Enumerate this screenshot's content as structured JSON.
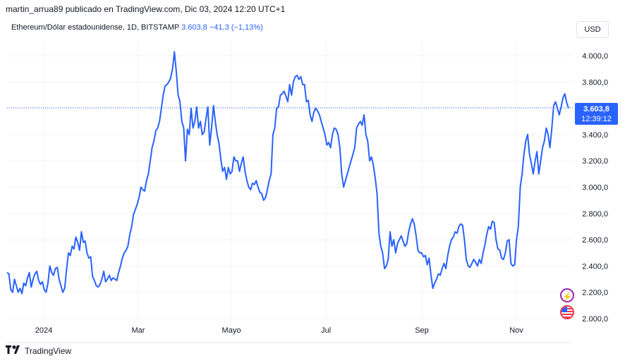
{
  "header": {
    "attribution": "martin_arrua89 publicado en TradingView.com, Dic 03, 2024 12:20 UTC+1"
  },
  "legend": {
    "symbol": "Ethereum/Dólar estadounidense, 1D, BITSTAMP",
    "last": "3.603,8",
    "change": "−41,3 (−1,13%)"
  },
  "currency_button": "USD",
  "price_tag": {
    "price": "3.603,8",
    "countdown": "12:39:12"
  },
  "footer": {
    "brand": "TradingView"
  },
  "icons": {
    "event": "lightning-icon",
    "flag": "us-flag-icon"
  },
  "colors": {
    "line": "#2962ff",
    "grid": "#f0f3fa",
    "text": "#131722"
  },
  "chart_data": {
    "type": "line",
    "x_ticks": [
      "2024",
      "Mar",
      "Mayo",
      "Jul",
      "Sep",
      "Nov"
    ],
    "y_ticks": [
      "4.000,0",
      "3.800,0",
      "3.600,0",
      "3.400,0",
      "3.200,0",
      "3.000,0",
      "2.800,0",
      "2.600,0",
      "2.400,0",
      "2.200,0",
      "2.000,0"
    ],
    "ylim": [
      2000,
      4000
    ],
    "last_price": 3603.8,
    "grid": true,
    "series": [
      {
        "values": [
          2350,
          2340,
          2220,
          2200,
          2300,
          2250,
          2200,
          2230,
          2190,
          2270,
          2250,
          2310,
          2350,
          2240,
          2300,
          2340,
          2360,
          2290,
          2260,
          2280,
          2220,
          2200,
          2270,
          2400,
          2350,
          2330,
          2380,
          2390,
          2300,
          2250,
          2200,
          2230,
          2370,
          2500,
          2480,
          2550,
          2530,
          2620,
          2580,
          2520,
          2660,
          2580,
          2590,
          2500,
          2460,
          2470,
          2320,
          2290,
          2250,
          2240,
          2260,
          2300,
          2360,
          2280,
          2300,
          2330,
          2290,
          2310,
          2300,
          2290,
          2350,
          2400,
          2460,
          2500,
          2520,
          2550,
          2640,
          2700,
          2790,
          2830,
          2870,
          2920,
          3000,
          2980,
          2970,
          3050,
          3100,
          3200,
          3300,
          3350,
          3430,
          3450,
          3500,
          3600,
          3700,
          3770,
          3780,
          3800,
          3830,
          3900,
          4030,
          3880,
          3700,
          3650,
          3500,
          3450,
          3200,
          3440,
          3400,
          3600,
          3450,
          3500,
          3610,
          3450,
          3500,
          3400,
          3420,
          3520,
          3610,
          3320,
          3450,
          3620,
          3500,
          3400,
          3330,
          3210,
          3120,
          3150,
          3060,
          3150,
          3100,
          3120,
          3230,
          3200,
          3200,
          3120,
          3180,
          3230,
          3120,
          3050,
          3000,
          2980,
          3030,
          3020,
          3050,
          3000,
          2960,
          2950,
          2900,
          2920,
          2980,
          3050,
          3100,
          3400,
          3450,
          3600,
          3610,
          3700,
          3710,
          3730,
          3690,
          3650,
          3780,
          3700,
          3800,
          3840,
          3850,
          3820,
          3840,
          3780,
          3780,
          3650,
          3660,
          3550,
          3500,
          3570,
          3600,
          3580,
          3550,
          3500,
          3450,
          3400,
          3320,
          3340,
          3300,
          3400,
          3450,
          3440,
          3400,
          3300,
          3100,
          3000,
          3050,
          3100,
          3150,
          3200,
          3250,
          3300,
          3450,
          3480,
          3500,
          3470,
          3550,
          3400,
          3350,
          3200,
          3230,
          3170,
          3070,
          2950,
          2650,
          2550,
          2500,
          2380,
          2400,
          2450,
          2660,
          2550,
          2600,
          2500,
          2570,
          2600,
          2630,
          2590,
          2550,
          2570,
          2660,
          2720,
          2760,
          2720,
          2630,
          2520,
          2500,
          2500,
          2470,
          2480,
          2410,
          2460,
          2330,
          2230,
          2270,
          2300,
          2340,
          2330,
          2380,
          2420,
          2380,
          2480,
          2550,
          2600,
          2620,
          2660,
          2650,
          2700,
          2720,
          2710,
          2600,
          2450,
          2400,
          2390,
          2420,
          2450,
          2430,
          2400,
          2450,
          2420,
          2500,
          2560,
          2640,
          2700,
          2680,
          2740,
          2730,
          2600,
          2530,
          2520,
          2460,
          2450,
          2500,
          2590,
          2600,
          2420,
          2400,
          2410,
          2600,
          2700,
          3000,
          3100,
          3250,
          3350,
          3400,
          3250,
          3180,
          3100,
          3200,
          3270,
          3100,
          3200,
          3300,
          3350,
          3450,
          3400,
          3300,
          3450,
          3620,
          3650,
          3600,
          3550,
          3610,
          3680,
          3710,
          3640,
          3600
        ]
      }
    ]
  }
}
